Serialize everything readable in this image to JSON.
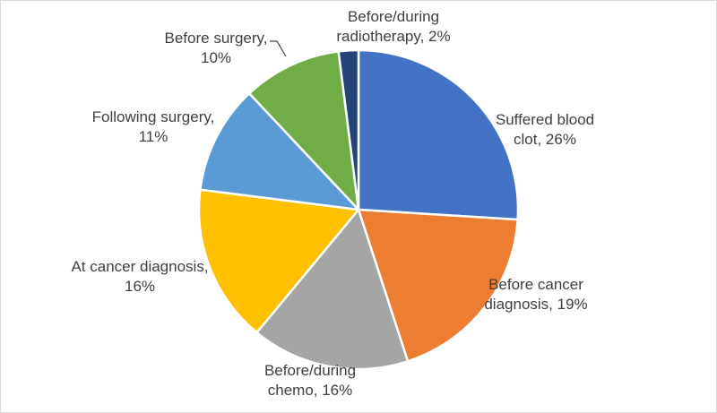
{
  "chart_data": {
    "type": "pie",
    "title": "",
    "legend": "none",
    "start_angle_deg": 0,
    "direction": "clockwise",
    "slices": [
      {
        "label_lines": [
          "Suffered blood",
          "clot, 26%"
        ],
        "value": 26,
        "color": "#4472c4"
      },
      {
        "label_lines": [
          "Before cancer",
          "diagnosis, 19%"
        ],
        "value": 19,
        "color": "#ed7d31"
      },
      {
        "label_lines": [
          "Before/during",
          "chemo, 16%"
        ],
        "value": 16,
        "color": "#a5a5a5"
      },
      {
        "label_lines": [
          "At cancer diagnosis,",
          "16%"
        ],
        "value": 16,
        "color": "#ffc000"
      },
      {
        "label_lines": [
          "Following surgery,",
          "11%"
        ],
        "value": 11,
        "color": "#5b9bd5"
      },
      {
        "label_lines": [
          "Before surgery,",
          "10%"
        ],
        "value": 10,
        "color": "#70ad47"
      },
      {
        "label_lines": [
          "Before/during",
          "radiotherapy, 2%"
        ],
        "value": 2,
        "color": "#264478"
      }
    ]
  }
}
